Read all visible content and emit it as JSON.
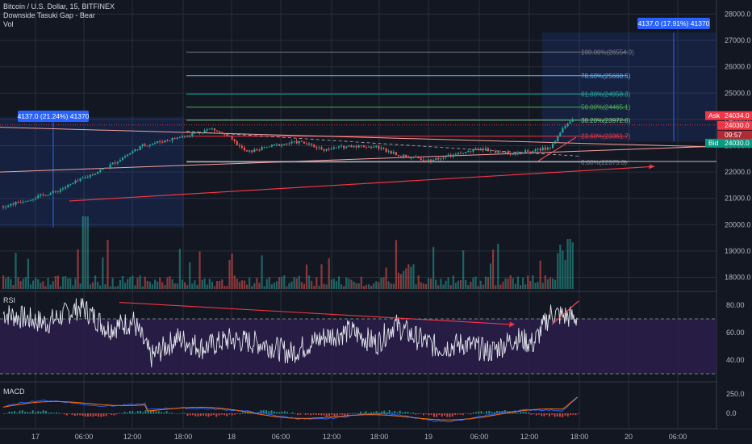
{
  "header": {
    "symbol_line": "Bitcoin / U.S. Dollar, 15, BITFINEX",
    "indicator_line": "Downside Tasuki Gap - Bear",
    "volume_label": "Vol"
  },
  "panes": {
    "rsi_label": "RSI",
    "macd_label": "MACD"
  },
  "colors": {
    "up": "#26a69a",
    "down": "#ef5350",
    "bg": "#131722",
    "grid": "#2a2e39",
    "ask": "#f23645",
    "bid": "#089981",
    "trend": "#f23645",
    "rsi_band": "#2b1f4a"
  },
  "price_axis": {
    "ticks": [
      "28000.0",
      "27000.0",
      "26000.0",
      "25000.0",
      "24000.0",
      "23000.0",
      "22000.0",
      "21000.0",
      "20000.0",
      "19000.0",
      "18000.0"
    ]
  },
  "rsi_axis": {
    "ticks": [
      "80.00",
      "60.00",
      "40.00"
    ]
  },
  "macd_axis": {
    "ticks": [
      "250.0",
      "0.0"
    ]
  },
  "time_axis": {
    "ticks": [
      "17",
      "06:00",
      "12:00",
      "18:00",
      "18",
      "06:00",
      "12:00",
      "18:00",
      "19",
      "06:00",
      "12:00",
      "18:00",
      "20",
      "06:00"
    ]
  },
  "price_tags": {
    "ask_label": "Ask",
    "ask_value": "24034.0",
    "last_value": "24030.0",
    "countdown": "09:57",
    "bid_label": "Bid",
    "bid_value": "24030.0"
  },
  "measure_left": {
    "label": "4137.0 (21.24%) 41370"
  },
  "measure_right": {
    "label": "4137.0 (17.91%) 41370"
  },
  "fib_levels": [
    {
      "label": "100.00%(26554.9)",
      "price": 26554.9,
      "color": "#787b86"
    },
    {
      "label": "78.60%(25660.5)",
      "price": 25660.5,
      "color": "#64b5f6"
    },
    {
      "label": "61.80%(24958.3)",
      "price": 24958.3,
      "color": "#26a69a"
    },
    {
      "label": "50.00%(24465.1)",
      "price": 24465.1,
      "color": "#4caf50"
    },
    {
      "label": "38.20%(23972.0)",
      "price": 23972.0,
      "color": "#81c784"
    },
    {
      "label": "23.60%(23361.7)",
      "price": 23361.7,
      "color": "#f23645"
    },
    {
      "label": "0.00%(22375.3)",
      "price": 22375.3,
      "color": "#787b86"
    }
  ],
  "chart_data": {
    "type": "candlestick",
    "title": "Bitcoin / U.S. Dollar, 15, BITFINEX",
    "interval": "15",
    "ylim": [
      17600,
      28500
    ],
    "grid": true,
    "close_path": [
      [
        0,
        20700
      ],
      [
        6,
        21250
      ],
      [
        12,
        22200
      ],
      [
        16,
        23000
      ],
      [
        20,
        23300
      ],
      [
        24,
        23650
      ],
      [
        26,
        23300
      ],
      [
        28,
        22750
      ],
      [
        31,
        23000
      ],
      [
        34,
        23150
      ],
      [
        37,
        22850
      ],
      [
        40,
        23000
      ],
      [
        43,
        22950
      ],
      [
        46,
        22600
      ],
      [
        49,
        22450
      ],
      [
        52,
        22650
      ],
      [
        55,
        22900
      ],
      [
        58,
        22700
      ],
      [
        61,
        22800
      ],
      [
        63,
        22950
      ],
      [
        64.5,
        23700
      ],
      [
        65.5,
        24030
      ]
    ],
    "rsi_close_path": [
      [
        0,
        74
      ],
      [
        5,
        67
      ],
      [
        9,
        79
      ],
      [
        12,
        63
      ],
      [
        15,
        68
      ],
      [
        17,
        42
      ],
      [
        20,
        56
      ],
      [
        23,
        49
      ],
      [
        26,
        55
      ],
      [
        30,
        52
      ],
      [
        33,
        45
      ],
      [
        37,
        57
      ],
      [
        40,
        61
      ],
      [
        43,
        52
      ],
      [
        45,
        66
      ],
      [
        47,
        58
      ],
      [
        50,
        49
      ],
      [
        53,
        52
      ],
      [
        56,
        46
      ],
      [
        59,
        56
      ],
      [
        61,
        52
      ],
      [
        63,
        74
      ],
      [
        65.5,
        71
      ]
    ],
    "rsi_levels": [
      70,
      30
    ],
    "rsi_ylim": [
      25,
      85
    ],
    "macd_ylim": [
      -120,
      360
    ]
  }
}
